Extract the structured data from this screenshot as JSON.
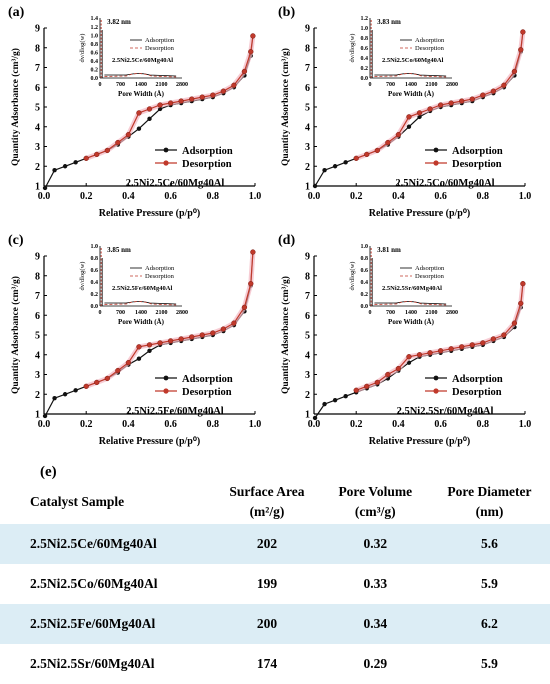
{
  "panels": [
    {
      "tag": "(a)",
      "sample": "2.5Ni2.5Ce/60Mg40Al",
      "peak": "3.82 nm"
    },
    {
      "tag": "(b)",
      "sample": "2.5Ni2.5Co/60Mg40Al",
      "peak": "3.83 nm"
    },
    {
      "tag": "(c)",
      "sample": "2.5Ni2.5Fe/60Mg40Al",
      "peak": "3.85 nm"
    },
    {
      "tag": "(d)",
      "sample": "2.5Ni2.5Sr/60Mg40Al",
      "peak": "3.81 nm"
    }
  ],
  "labels": {
    "ylabel": "Quantity Adsorbance (cm³/g)",
    "xlabel": "Relative Pressure (p/p⁰)",
    "legend_ads": "Adsorption",
    "legend_des": "Desorption",
    "inset_ylabel": "dv/dlog(w)",
    "inset_xlabel": "Pore Width (Å)"
  },
  "colors": {
    "adsorption": "#111111",
    "desorption": "#c0392b",
    "halo": "#f4b6c2"
  },
  "chart_data": [
    {
      "type": "line",
      "panel": "(a)",
      "xlim": [
        0,
        1
      ],
      "ylim": [
        1,
        9
      ],
      "xticks": [
        "0.0",
        "0.2",
        "0.4",
        "0.6",
        "0.8",
        "1.0"
      ],
      "yticks": [
        "1",
        "2",
        "3",
        "4",
        "5",
        "6",
        "7",
        "8",
        "9"
      ],
      "series": [
        {
          "name": "Adsorption",
          "x": [
            0.005,
            0.05,
            0.1,
            0.15,
            0.2,
            0.25,
            0.3,
            0.35,
            0.4,
            0.45,
            0.5,
            0.55,
            0.6,
            0.65,
            0.7,
            0.75,
            0.8,
            0.85,
            0.9,
            0.95,
            0.98,
            0.99
          ],
          "y": [
            0.9,
            1.8,
            2.0,
            2.2,
            2.4,
            2.6,
            2.8,
            3.1,
            3.5,
            3.9,
            4.4,
            4.9,
            5.1,
            5.2,
            5.3,
            5.4,
            5.5,
            5.7,
            6.0,
            6.6,
            7.6,
            8.6
          ]
        },
        {
          "name": "Desorption",
          "x": [
            0.99,
            0.98,
            0.95,
            0.9,
            0.85,
            0.8,
            0.75,
            0.7,
            0.65,
            0.6,
            0.55,
            0.5,
            0.45,
            0.4,
            0.35,
            0.3,
            0.25,
            0.2
          ],
          "y": [
            8.6,
            7.8,
            6.8,
            6.1,
            5.8,
            5.6,
            5.5,
            5.4,
            5.3,
            5.2,
            5.1,
            4.9,
            4.7,
            3.6,
            3.2,
            2.8,
            2.6,
            2.4
          ]
        }
      ],
      "inset": {
        "xlim": [
          0,
          2800
        ],
        "ylim": [
          0,
          1.4
        ],
        "xticks": [
          "0",
          "700",
          "1400",
          "2100",
          "2800"
        ],
        "yticks": [
          "0.0",
          "0.2",
          "0.4",
          "0.6",
          "0.8",
          "1.0",
          "1.2",
          "1.4"
        ]
      }
    },
    {
      "type": "line",
      "panel": "(b)",
      "xlim": [
        0,
        1
      ],
      "ylim": [
        1,
        9
      ],
      "xticks": [
        "0.0",
        "0.2",
        "0.4",
        "0.6",
        "0.8",
        "1.0"
      ],
      "yticks": [
        "1",
        "2",
        "3",
        "4",
        "5",
        "6",
        "7",
        "8",
        "9"
      ],
      "series": [
        {
          "name": "Adsorption",
          "x": [
            0.005,
            0.05,
            0.1,
            0.15,
            0.2,
            0.25,
            0.3,
            0.35,
            0.4,
            0.45,
            0.5,
            0.55,
            0.6,
            0.65,
            0.7,
            0.75,
            0.8,
            0.85,
            0.9,
            0.95,
            0.98,
            0.99
          ],
          "y": [
            1.0,
            1.8,
            2.0,
            2.2,
            2.4,
            2.6,
            2.8,
            3.1,
            3.5,
            4.0,
            4.5,
            4.8,
            5.0,
            5.1,
            5.2,
            5.3,
            5.5,
            5.7,
            6.0,
            6.6,
            7.8,
            8.8
          ]
        },
        {
          "name": "Desorption",
          "x": [
            0.99,
            0.98,
            0.95,
            0.9,
            0.85,
            0.8,
            0.75,
            0.7,
            0.65,
            0.6,
            0.55,
            0.5,
            0.45,
            0.4,
            0.35,
            0.3,
            0.25,
            0.2
          ],
          "y": [
            8.8,
            7.9,
            6.8,
            6.1,
            5.8,
            5.6,
            5.4,
            5.3,
            5.2,
            5.1,
            4.9,
            4.7,
            4.5,
            3.6,
            3.2,
            2.8,
            2.6,
            2.4
          ]
        }
      ],
      "inset": {
        "xlim": [
          0,
          2800
        ],
        "ylim": [
          0,
          1.2
        ],
        "xticks": [
          "0",
          "700",
          "1400",
          "2100",
          "2800"
        ],
        "yticks": [
          "0.0",
          "0.2",
          "0.4",
          "0.6",
          "0.8",
          "1.0",
          "1.2"
        ]
      }
    },
    {
      "type": "line",
      "panel": "(c)",
      "xlim": [
        0,
        1
      ],
      "ylim": [
        1,
        9
      ],
      "xticks": [
        "0.0",
        "0.2",
        "0.4",
        "0.6",
        "0.8",
        "1.0"
      ],
      "yticks": [
        "1",
        "2",
        "3",
        "4",
        "5",
        "6",
        "7",
        "8",
        "9"
      ],
      "series": [
        {
          "name": "Adsorption",
          "x": [
            0.005,
            0.05,
            0.1,
            0.15,
            0.2,
            0.25,
            0.3,
            0.35,
            0.4,
            0.45,
            0.5,
            0.55,
            0.6,
            0.65,
            0.7,
            0.75,
            0.8,
            0.85,
            0.9,
            0.95,
            0.98,
            0.99
          ],
          "y": [
            0.9,
            1.8,
            2.0,
            2.2,
            2.4,
            2.6,
            2.8,
            3.1,
            3.5,
            3.8,
            4.2,
            4.5,
            4.6,
            4.7,
            4.8,
            4.9,
            5.0,
            5.2,
            5.5,
            6.2,
            7.5,
            9.2
          ]
        },
        {
          "name": "Desorption",
          "x": [
            0.99,
            0.98,
            0.95,
            0.9,
            0.85,
            0.8,
            0.75,
            0.7,
            0.65,
            0.6,
            0.55,
            0.5,
            0.45,
            0.4,
            0.35,
            0.3,
            0.25,
            0.2
          ],
          "y": [
            9.2,
            7.6,
            6.4,
            5.6,
            5.3,
            5.1,
            5.0,
            4.9,
            4.8,
            4.7,
            4.6,
            4.5,
            4.4,
            3.6,
            3.2,
            2.8,
            2.6,
            2.4
          ]
        }
      ],
      "inset": {
        "xlim": [
          0,
          2800
        ],
        "ylim": [
          0,
          1.0
        ],
        "xticks": [
          "0",
          "700",
          "1400",
          "2100",
          "2800"
        ],
        "yticks": [
          "0.0",
          "0.2",
          "0.4",
          "0.6",
          "0.8",
          "1.0"
        ]
      }
    },
    {
      "type": "line",
      "panel": "(d)",
      "xlim": [
        0,
        1
      ],
      "ylim": [
        1,
        9
      ],
      "xticks": [
        "0.0",
        "0.2",
        "0.4",
        "0.6",
        "0.8",
        "1.0"
      ],
      "yticks": [
        "1",
        "2",
        "3",
        "4",
        "5",
        "6",
        "7",
        "8",
        "9"
      ],
      "series": [
        {
          "name": "Adsorption",
          "x": [
            0.005,
            0.05,
            0.1,
            0.15,
            0.2,
            0.25,
            0.3,
            0.35,
            0.4,
            0.45,
            0.5,
            0.55,
            0.6,
            0.65,
            0.7,
            0.75,
            0.8,
            0.85,
            0.9,
            0.95,
            0.98,
            0.99
          ],
          "y": [
            0.8,
            1.5,
            1.7,
            1.9,
            2.1,
            2.3,
            2.5,
            2.8,
            3.2,
            3.6,
            3.9,
            4.0,
            4.1,
            4.2,
            4.3,
            4.4,
            4.5,
            4.7,
            4.9,
            5.4,
            6.4,
            7.6
          ]
        },
        {
          "name": "Desorption",
          "x": [
            0.99,
            0.98,
            0.95,
            0.9,
            0.85,
            0.8,
            0.75,
            0.7,
            0.65,
            0.6,
            0.55,
            0.5,
            0.45,
            0.4,
            0.35,
            0.3,
            0.25,
            0.2
          ],
          "y": [
            7.6,
            6.6,
            5.6,
            5.0,
            4.8,
            4.6,
            4.5,
            4.4,
            4.3,
            4.2,
            4.1,
            4.0,
            3.9,
            3.3,
            3.0,
            2.6,
            2.4,
            2.2
          ]
        }
      ],
      "inset": {
        "xlim": [
          0,
          2800
        ],
        "ylim": [
          0,
          1.0
        ],
        "xticks": [
          "0",
          "700",
          "1400",
          "2100",
          "2800"
        ],
        "yticks": [
          "0.0",
          "0.2",
          "0.4",
          "0.6",
          "0.8",
          "1.0"
        ]
      }
    }
  ],
  "table": {
    "tag": "(e)",
    "headers": [
      {
        "main": "Catalyst Sample",
        "sub": ""
      },
      {
        "main": "Surface Area",
        "sub": "(m²/g)"
      },
      {
        "main": "Pore Volume",
        "sub": "(cm³/g)"
      },
      {
        "main": "Pore Diameter",
        "sub": "(nm)"
      }
    ],
    "rows": [
      [
        "2.5Ni2.5Ce/60Mg40Al",
        "202",
        "0.32",
        "5.6"
      ],
      [
        "2.5Ni2.5Co/60Mg40Al",
        "199",
        "0.33",
        "5.9"
      ],
      [
        "2.5Ni2.5Fe/60Mg40Al",
        "200",
        "0.34",
        "6.2"
      ],
      [
        "2.5Ni2.5Sr/60Mg40Al",
        "174",
        "0.29",
        "5.9"
      ]
    ]
  }
}
